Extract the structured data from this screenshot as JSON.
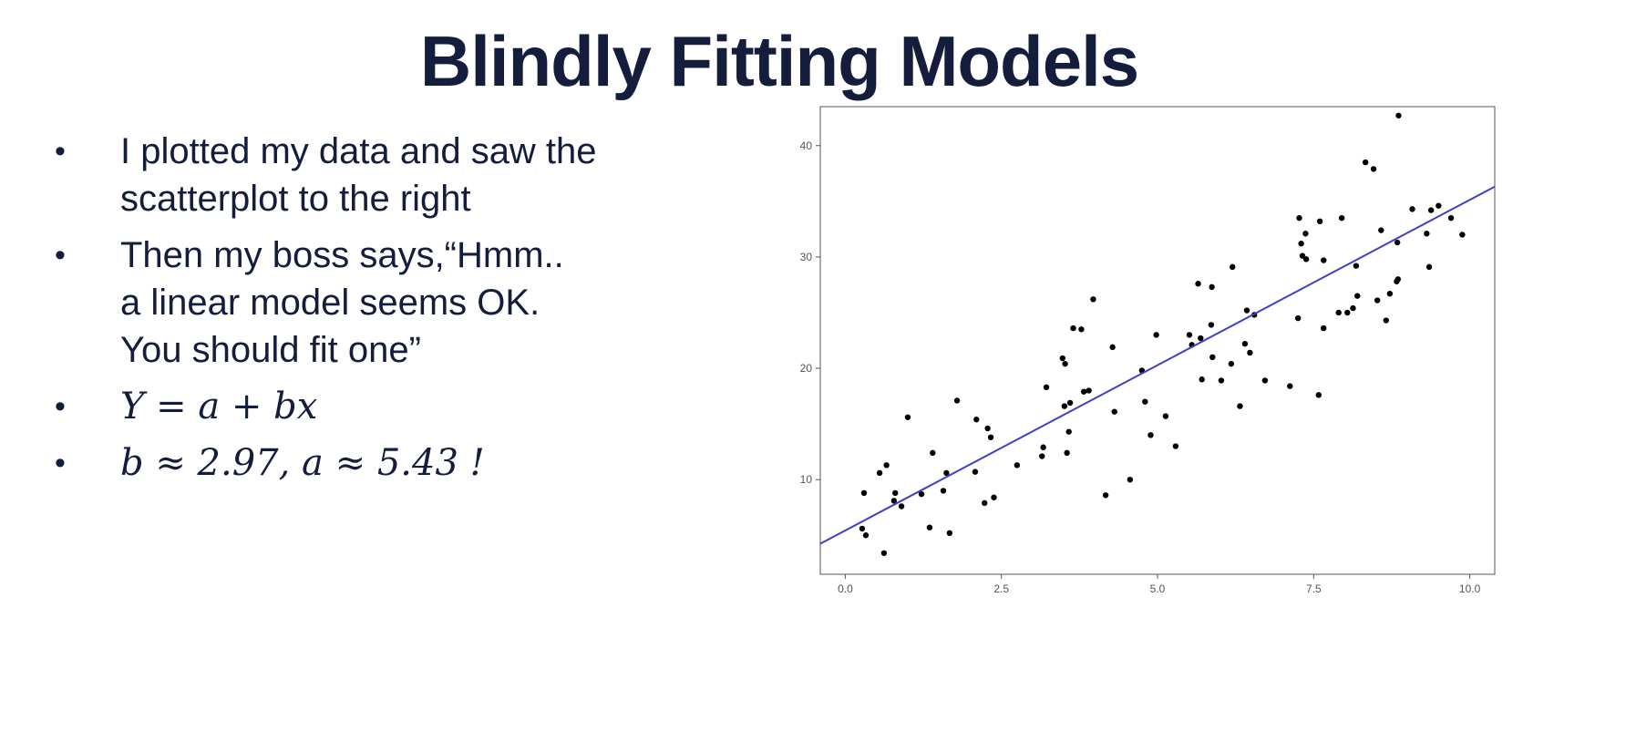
{
  "slide": {
    "title": "Blindly Fitting Models",
    "bullets": [
      {
        "lines": [
          "I plotted my data and saw the",
          "scatterplot to the right"
        ]
      },
      {
        "lines": [
          "Then my boss says,“Hmm..",
          "a linear model seems OK.",
          "You should fit one”"
        ]
      },
      {
        "lines": [
          "Y = a + bx"
        ]
      },
      {
        "lines": [
          "b ≈ 2.97, a ≈ 5.43 !"
        ]
      }
    ],
    "bullet_glyph": "•"
  },
  "chart_data": {
    "type": "scatter",
    "title": "",
    "xlabel": "",
    "ylabel": "",
    "xlim": [
      -0.4,
      10.4
    ],
    "ylim": [
      1.5,
      43.5
    ],
    "x_ticks": [
      0.0,
      2.5,
      5.0,
      7.5,
      10.0
    ],
    "x_tick_labels": [
      "0.0",
      "2.5",
      "5.0",
      "7.5",
      "10.0"
    ],
    "y_ticks": [
      10,
      20,
      30,
      40
    ],
    "y_tick_labels": [
      "10",
      "20",
      "30",
      "40"
    ],
    "grid": false,
    "colors": {
      "points": "#000000",
      "line": "#3f3fc8",
      "axis": "#555555"
    },
    "fit_line": {
      "intercept": 5.43,
      "slope": 2.97
    },
    "points": [
      [
        0.27,
        5.6
      ],
      [
        0.3,
        8.8
      ],
      [
        0.33,
        5.0
      ],
      [
        0.55,
        10.6
      ],
      [
        0.62,
        3.4
      ],
      [
        0.66,
        11.3
      ],
      [
        0.78,
        8.1
      ],
      [
        0.8,
        8.8
      ],
      [
        0.9,
        7.6
      ],
      [
        1.0,
        15.6
      ],
      [
        1.22,
        8.7
      ],
      [
        1.35,
        5.7
      ],
      [
        1.4,
        12.4
      ],
      [
        1.57,
        9.0
      ],
      [
        1.62,
        10.6
      ],
      [
        1.67,
        5.2
      ],
      [
        1.79,
        17.1
      ],
      [
        2.08,
        10.7
      ],
      [
        2.1,
        15.4
      ],
      [
        2.23,
        7.9
      ],
      [
        2.28,
        14.6
      ],
      [
        2.33,
        13.8
      ],
      [
        2.38,
        8.4
      ],
      [
        2.75,
        11.3
      ],
      [
        3.15,
        12.1
      ],
      [
        3.17,
        12.9
      ],
      [
        3.22,
        18.3
      ],
      [
        3.48,
        20.9
      ],
      [
        3.51,
        16.6
      ],
      [
        3.52,
        20.4
      ],
      [
        3.55,
        12.4
      ],
      [
        3.58,
        14.3
      ],
      [
        3.6,
        16.9
      ],
      [
        3.65,
        23.6
      ],
      [
        3.78,
        23.5
      ],
      [
        3.82,
        17.9
      ],
      [
        3.9,
        18.0
      ],
      [
        3.97,
        26.2
      ],
      [
        4.17,
        8.6
      ],
      [
        4.28,
        21.9
      ],
      [
        4.31,
        16.1
      ],
      [
        4.56,
        10.0
      ],
      [
        4.75,
        19.8
      ],
      [
        4.8,
        17.0
      ],
      [
        4.89,
        14.0
      ],
      [
        4.98,
        23.0
      ],
      [
        5.13,
        15.7
      ],
      [
        5.29,
        13.0
      ],
      [
        5.51,
        23.0
      ],
      [
        5.55,
        22.1
      ],
      [
        5.65,
        27.6
      ],
      [
        5.69,
        22.7
      ],
      [
        5.71,
        19.0
      ],
      [
        5.86,
        23.9
      ],
      [
        5.87,
        27.3
      ],
      [
        5.88,
        21.0
      ],
      [
        6.02,
        18.9
      ],
      [
        6.18,
        20.4
      ],
      [
        6.2,
        29.1
      ],
      [
        6.32,
        16.6
      ],
      [
        6.4,
        22.2
      ],
      [
        6.43,
        25.2
      ],
      [
        6.48,
        21.4
      ],
      [
        6.55,
        24.8
      ],
      [
        6.72,
        18.9
      ],
      [
        7.12,
        18.4
      ],
      [
        7.25,
        24.5
      ],
      [
        7.27,
        33.5
      ],
      [
        7.3,
        31.2
      ],
      [
        7.32,
        30.1
      ],
      [
        7.37,
        32.1
      ],
      [
        7.38,
        29.8
      ],
      [
        7.58,
        17.6
      ],
      [
        7.6,
        33.2
      ],
      [
        7.66,
        29.7
      ],
      [
        7.66,
        23.6
      ],
      [
        7.9,
        25.0
      ],
      [
        7.95,
        33.5
      ],
      [
        8.04,
        25.0
      ],
      [
        8.13,
        25.4
      ],
      [
        8.18,
        29.2
      ],
      [
        8.2,
        26.5
      ],
      [
        8.33,
        38.5
      ],
      [
        8.46,
        37.9
      ],
      [
        8.52,
        26.1
      ],
      [
        8.58,
        32.4
      ],
      [
        8.66,
        24.3
      ],
      [
        8.72,
        26.7
      ],
      [
        8.83,
        27.8
      ],
      [
        8.84,
        31.3
      ],
      [
        8.85,
        28.0
      ],
      [
        8.86,
        42.7
      ],
      [
        9.08,
        34.3
      ],
      [
        9.31,
        32.1
      ],
      [
        9.35,
        29.1
      ],
      [
        9.38,
        34.2
      ],
      [
        9.5,
        34.6
      ],
      [
        9.7,
        33.5
      ],
      [
        9.88,
        32.0
      ]
    ]
  }
}
